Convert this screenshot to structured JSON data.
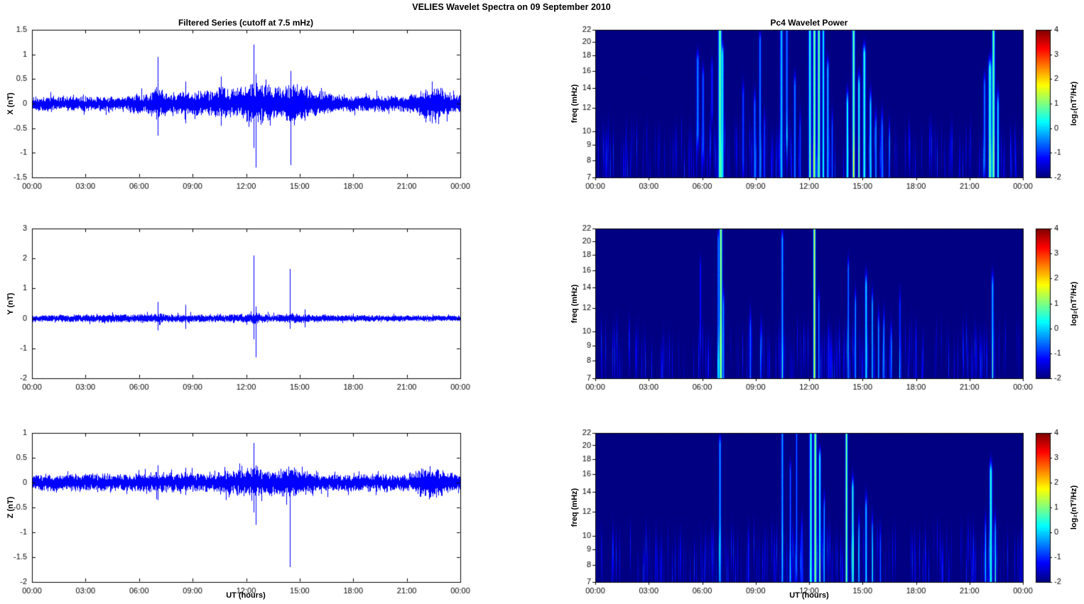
{
  "figure": {
    "title": "VELIES Wavelet Spectra on 09 September 2010",
    "background": "#ffffff"
  },
  "axes": {
    "xlabel": "UT (hours)",
    "x_range_hours": [
      0,
      24
    ],
    "x_tick_hours": [
      0,
      3,
      6,
      9,
      12,
      15,
      18,
      21,
      24
    ],
    "x_tick_labels": [
      "00:00",
      "03:00",
      "06:00",
      "09:00",
      "12:00",
      "15:00",
      "18:00",
      "21:00",
      "00:00"
    ]
  },
  "colors": {
    "series_line": "#0000ff",
    "axis": "#000000",
    "colormap": "jet",
    "spec_background_value": -2
  },
  "chart_data": [
    {
      "id": "ts-x",
      "type": "line",
      "panel": "left-top",
      "title": "Filtered Series (cutoff at 7.5 mHz)",
      "ylabel": "X (nT)",
      "xlabel": "",
      "ylim": [
        -1.5,
        1.5
      ],
      "yticks": [
        -1.5,
        -1,
        -0.5,
        0,
        0.5,
        1,
        1.5
      ],
      "seed": 11,
      "noise_envelope_nT": [
        [
          0,
          0.12
        ],
        [
          5,
          0.12
        ],
        [
          5.8,
          0.16
        ],
        [
          6.5,
          0.18
        ],
        [
          7,
          0.28
        ],
        [
          7.4,
          0.2
        ],
        [
          8,
          0.18
        ],
        [
          9,
          0.2
        ],
        [
          10,
          0.2
        ],
        [
          10.6,
          0.28
        ],
        [
          11,
          0.22
        ],
        [
          11.5,
          0.24
        ],
        [
          12,
          0.28
        ],
        [
          12.4,
          0.38
        ],
        [
          13,
          0.32
        ],
        [
          13.5,
          0.26
        ],
        [
          14,
          0.28
        ],
        [
          14.5,
          0.34
        ],
        [
          15,
          0.3
        ],
        [
          15.5,
          0.26
        ],
        [
          16,
          0.22
        ],
        [
          16.5,
          0.18
        ],
        [
          17,
          0.15
        ],
        [
          18,
          0.13
        ],
        [
          21,
          0.13
        ],
        [
          21.8,
          0.2
        ],
        [
          22.2,
          0.28
        ],
        [
          22.7,
          0.3
        ],
        [
          23.2,
          0.22
        ],
        [
          23.6,
          0.16
        ],
        [
          24,
          0.14
        ]
      ],
      "spikes_t_up_down": [
        [
          7.05,
          0.95,
          -0.65
        ],
        [
          8.6,
          0.45,
          -0.4
        ],
        [
          10.6,
          0.55,
          -0.45
        ],
        [
          12.4,
          1.2,
          -0.9
        ],
        [
          12.55,
          0.6,
          -1.3
        ],
        [
          14.5,
          0.5,
          -1.25
        ],
        [
          22.4,
          0.45,
          -0.4
        ]
      ]
    },
    {
      "id": "ts-y",
      "type": "line",
      "panel": "left-middle",
      "title": "",
      "ylabel": "Y (nT)",
      "xlabel": "",
      "ylim": [
        -2,
        3
      ],
      "yticks": [
        -2,
        -1,
        0,
        1,
        2,
        3
      ],
      "seed": 22,
      "noise_envelope_nT": [
        [
          0,
          0.09
        ],
        [
          6.9,
          0.12
        ],
        [
          7.1,
          0.16
        ],
        [
          7.4,
          0.1
        ],
        [
          8.5,
          0.12
        ],
        [
          9,
          0.1
        ],
        [
          12,
          0.12
        ],
        [
          12.5,
          0.15
        ],
        [
          13,
          0.11
        ],
        [
          14,
          0.1
        ],
        [
          14.5,
          0.13
        ],
        [
          16,
          0.1
        ],
        [
          17,
          0.09
        ],
        [
          24,
          0.08
        ]
      ],
      "spikes_t_up_down": [
        [
          7.05,
          0.55,
          -0.4
        ],
        [
          8.6,
          0.45,
          -0.35
        ],
        [
          12.4,
          2.1,
          -0.7
        ],
        [
          12.55,
          0.4,
          -1.3
        ],
        [
          14.45,
          1.65,
          -0.35
        ],
        [
          15.3,
          0.3,
          -0.3
        ]
      ]
    },
    {
      "id": "ts-z",
      "type": "line",
      "panel": "left-bottom",
      "title": "",
      "ylabel": "Z (nT)",
      "xlabel": "UT (hours)",
      "ylim": [
        -2,
        1
      ],
      "yticks": [
        -2,
        -1.5,
        -1,
        -0.5,
        0,
        0.5,
        1
      ],
      "seed": 33,
      "noise_envelope_nT": [
        [
          0,
          0.13
        ],
        [
          6.8,
          0.15
        ],
        [
          7,
          0.2
        ],
        [
          7.3,
          0.15
        ],
        [
          10,
          0.16
        ],
        [
          11,
          0.2
        ],
        [
          12,
          0.22
        ],
        [
          12.5,
          0.25
        ],
        [
          13,
          0.2
        ],
        [
          14,
          0.22
        ],
        [
          14.6,
          0.25
        ],
        [
          15,
          0.2
        ],
        [
          16,
          0.17
        ],
        [
          17,
          0.14
        ],
        [
          21,
          0.14
        ],
        [
          21.8,
          0.22
        ],
        [
          22.5,
          0.25
        ],
        [
          23,
          0.2
        ],
        [
          23.5,
          0.15
        ],
        [
          24,
          0.13
        ]
      ],
      "spikes_t_up_down": [
        [
          7.05,
          0.35,
          -0.35
        ],
        [
          8.6,
          0.3,
          -0.25
        ],
        [
          12.4,
          0.8,
          -0.6
        ],
        [
          12.55,
          0.35,
          -0.85
        ],
        [
          14.45,
          0.25,
          -1.7
        ],
        [
          22.3,
          0.3,
          -0.3
        ]
      ]
    },
    {
      "id": "spec-x",
      "type": "heatmap",
      "panel": "right-top",
      "title": "Pc4 Wavelet Power",
      "ylabel": "freq (mHz)",
      "xlabel": "",
      "yscale": "log",
      "ylim": [
        7,
        22
      ],
      "yticks": [
        7,
        8,
        9,
        10,
        12,
        14,
        16,
        18,
        20,
        22
      ],
      "clim": [
        -2,
        4
      ],
      "colorbar": {
        "ticks": [
          4,
          3,
          2,
          1,
          0,
          -1,
          -2
        ],
        "label": "log₂(nT²/Hz)"
      },
      "seed": 44,
      "events_format": "t_hours, sigma_hours, f_low_mHz, f_high_mHz, peak_log2_power",
      "events_t_sigma_flow_fhigh_peak": [
        [
          5.75,
          0.05,
          10,
          17,
          1.6
        ],
        [
          6.05,
          0.04,
          9,
          15,
          1.4
        ],
        [
          6.55,
          0.04,
          12,
          16,
          1.0
        ],
        [
          7.0,
          0.06,
          7,
          22,
          3.0
        ],
        [
          7.15,
          0.04,
          7,
          18,
          2.2
        ],
        [
          8.3,
          0.04,
          8,
          13,
          1.2
        ],
        [
          8.95,
          0.04,
          7,
          12,
          1.5
        ],
        [
          9.25,
          0.04,
          7,
          20,
          1.6
        ],
        [
          9.5,
          0.03,
          7,
          10,
          1.2
        ],
        [
          10.45,
          0.05,
          7,
          22,
          2.0
        ],
        [
          10.75,
          0.04,
          10,
          22,
          1.6
        ],
        [
          11.2,
          0.04,
          7,
          14,
          1.6
        ],
        [
          11.5,
          0.03,
          7,
          10,
          1.2
        ],
        [
          12.05,
          0.05,
          7,
          22,
          2.6
        ],
        [
          12.3,
          0.05,
          7,
          22,
          3.2
        ],
        [
          12.55,
          0.05,
          7,
          22,
          3.0
        ],
        [
          12.8,
          0.04,
          7,
          22,
          2.4
        ],
        [
          13.05,
          0.04,
          7,
          16,
          2.0
        ],
        [
          13.3,
          0.03,
          7,
          10,
          1.4
        ],
        [
          14.15,
          0.04,
          7,
          12,
          2.6
        ],
        [
          14.5,
          0.05,
          7,
          22,
          3.0
        ],
        [
          14.8,
          0.04,
          7,
          14,
          2.6
        ],
        [
          15.1,
          0.05,
          7,
          18,
          2.6
        ],
        [
          15.45,
          0.04,
          7,
          12,
          2.2
        ],
        [
          15.75,
          0.03,
          7,
          10,
          1.8
        ],
        [
          16.1,
          0.04,
          7,
          10,
          1.6
        ],
        [
          16.5,
          0.03,
          7,
          9,
          1.2
        ],
        [
          21.85,
          0.04,
          8,
          14,
          1.6
        ],
        [
          22.15,
          0.06,
          7,
          16,
          2.6
        ],
        [
          22.35,
          0.05,
          7,
          22,
          3.0
        ],
        [
          22.6,
          0.04,
          7,
          12,
          2.2
        ]
      ]
    },
    {
      "id": "spec-y",
      "type": "heatmap",
      "panel": "right-middle",
      "title": "",
      "ylabel": "freq (mHz)",
      "xlabel": "",
      "yscale": "log",
      "ylim": [
        7,
        22
      ],
      "yticks": [
        7,
        8,
        9,
        10,
        12,
        14,
        16,
        18,
        20,
        22
      ],
      "clim": [
        -2,
        4
      ],
      "colorbar": {
        "ticks": [
          4,
          3,
          2,
          1,
          0,
          -1,
          -2
        ],
        "label": "log₂(nT²/Hz)"
      },
      "seed": 55,
      "events_format": "t_hours, sigma_hours, f_low_mHz, f_high_mHz, peak_log2_power",
      "events_t_sigma_flow_fhigh_peak": [
        [
          5.9,
          0.03,
          10,
          16,
          0.9
        ],
        [
          6.9,
          0.03,
          7,
          20,
          1.6
        ],
        [
          7.05,
          0.05,
          7,
          22,
          3.3
        ],
        [
          7.2,
          0.03,
          7,
          12,
          1.8
        ],
        [
          8.7,
          0.03,
          7,
          10,
          1.5
        ],
        [
          9.3,
          0.03,
          7,
          9,
          1.0
        ],
        [
          10.5,
          0.04,
          7,
          20,
          1.8
        ],
        [
          12.3,
          0.04,
          7,
          22,
          4.0
        ],
        [
          12.55,
          0.03,
          7,
          12,
          1.6
        ],
        [
          13.1,
          0.03,
          7,
          9,
          1.0
        ],
        [
          14.2,
          0.03,
          7,
          16,
          1.6
        ],
        [
          14.6,
          0.03,
          7,
          12,
          1.8
        ],
        [
          15.2,
          0.04,
          7,
          14,
          2.2
        ],
        [
          15.55,
          0.03,
          7,
          12,
          2.0
        ],
        [
          15.9,
          0.03,
          7,
          10,
          1.8
        ],
        [
          16.2,
          0.03,
          7,
          10,
          1.6
        ],
        [
          16.6,
          0.03,
          7,
          9,
          1.4
        ],
        [
          17.1,
          0.03,
          7,
          12,
          1.2
        ],
        [
          18.0,
          0.03,
          7,
          9,
          0.9
        ],
        [
          22.3,
          0.04,
          7,
          14,
          1.9
        ]
      ]
    },
    {
      "id": "spec-z",
      "type": "heatmap",
      "panel": "right-bottom",
      "title": "",
      "ylabel": "freq (mHz)",
      "xlabel": "UT (hours)",
      "yscale": "log",
      "ylim": [
        7,
        22
      ],
      "yticks": [
        7,
        8,
        9,
        10,
        12,
        14,
        16,
        18,
        20,
        22
      ],
      "clim": [
        -2,
        4
      ],
      "colorbar": {
        "ticks": [
          4,
          3,
          2,
          1,
          0,
          -1,
          -2
        ],
        "label": "log₂(nT²/Hz)"
      },
      "seed": 66,
      "events_format": "t_hours, sigma_hours, f_low_mHz, f_high_mHz, peak_log2_power",
      "events_t_sigma_flow_fhigh_peak": [
        [
          7.0,
          0.04,
          7,
          20,
          1.8
        ],
        [
          8.6,
          0.03,
          7,
          9,
          1.0
        ],
        [
          10.5,
          0.04,
          7,
          22,
          1.8
        ],
        [
          10.95,
          0.03,
          7,
          16,
          1.5
        ],
        [
          11.3,
          0.03,
          8,
          22,
          1.5
        ],
        [
          11.6,
          0.03,
          7,
          10,
          1.2
        ],
        [
          12.1,
          0.05,
          7,
          22,
          2.6
        ],
        [
          12.35,
          0.05,
          7,
          22,
          3.2
        ],
        [
          12.6,
          0.04,
          7,
          18,
          2.4
        ],
        [
          12.85,
          0.03,
          7,
          12,
          1.8
        ],
        [
          14.1,
          0.04,
          7,
          22,
          3.2
        ],
        [
          14.45,
          0.04,
          7,
          14,
          2.6
        ],
        [
          14.8,
          0.03,
          7,
          10,
          1.8
        ],
        [
          15.2,
          0.04,
          7,
          12,
          2.0
        ],
        [
          15.55,
          0.03,
          7,
          10,
          1.8
        ],
        [
          16.0,
          0.03,
          7,
          9,
          1.4
        ],
        [
          21.9,
          0.03,
          7,
          10,
          1.5
        ],
        [
          22.2,
          0.05,
          7,
          16,
          2.6
        ],
        [
          22.45,
          0.03,
          7,
          10,
          2.0
        ]
      ]
    }
  ]
}
